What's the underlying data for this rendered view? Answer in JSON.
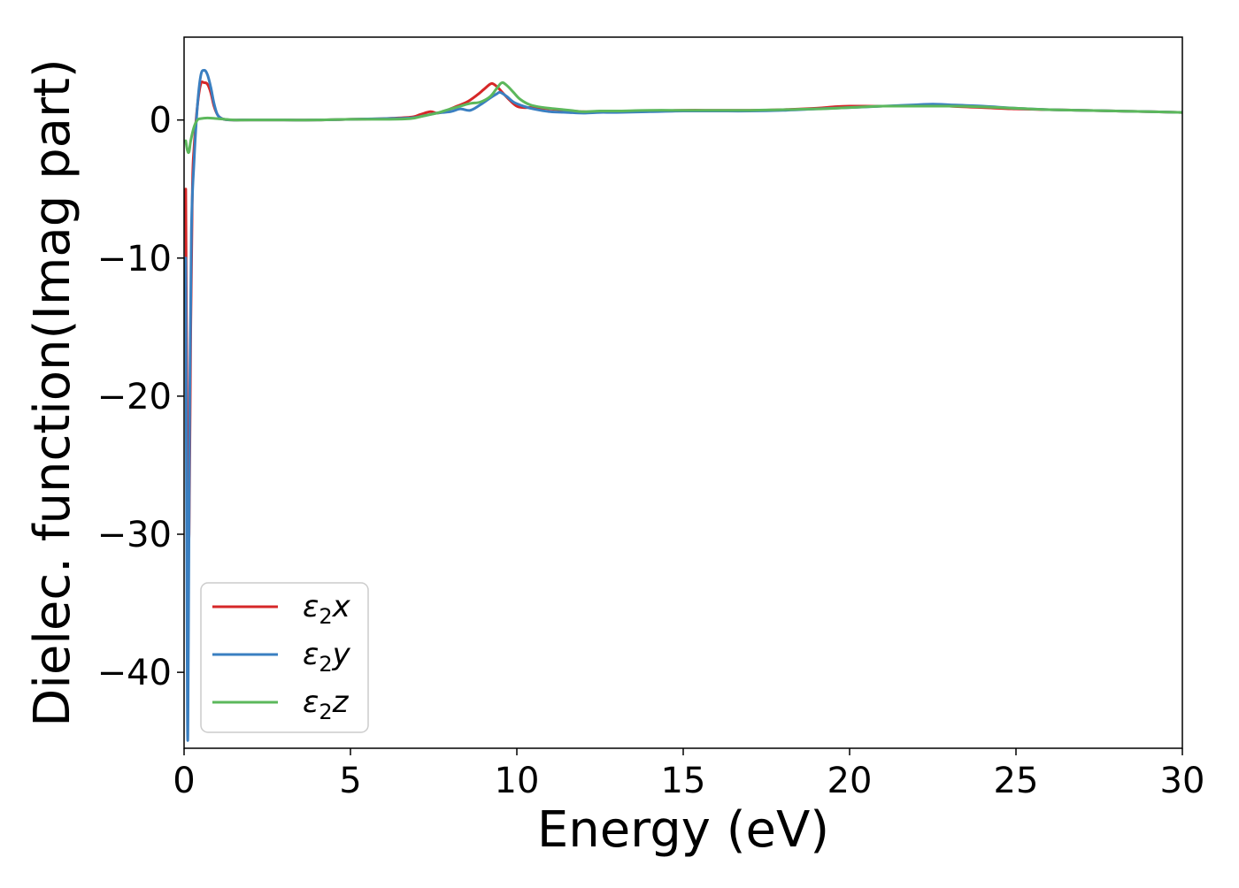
{
  "chart_data": {
    "type": "line",
    "title": "",
    "xlabel": "Energy (eV)",
    "ylabel": "Dielec. function(Imag part)",
    "xlim": [
      0,
      30
    ],
    "ylim": [
      -45.5,
      6
    ],
    "xticks": [
      0,
      5,
      10,
      15,
      20,
      25,
      30
    ],
    "xtick_labels": [
      "0",
      "5",
      "10",
      "15",
      "20",
      "25",
      "30"
    ],
    "yticks": [
      -40,
      -30,
      -20,
      -10,
      0
    ],
    "ytick_labels": [
      "−40",
      "−30",
      "−20",
      "−10",
      "0"
    ],
    "grid": false,
    "legend": {
      "placement": "lower-left",
      "entries": [
        {
          "symbol": "ε",
          "subscript": "2",
          "suffix": "x",
          "color": "#d62728"
        },
        {
          "symbol": "ε",
          "subscript": "2",
          "suffix": "y",
          "color": "#3a7fc1"
        },
        {
          "symbol": "ε",
          "subscript": "2",
          "suffix": "z",
          "color": "#5cb85c"
        }
      ]
    },
    "series": [
      {
        "name": "ε2x",
        "color": "#d62728",
        "x": [
          0.05,
          0.1,
          0.15,
          0.2,
          0.25,
          0.3,
          0.4,
          0.5,
          0.6,
          0.7,
          0.8,
          0.9,
          1.0,
          1.1,
          1.2,
          1.4,
          1.7,
          2.0,
          3.0,
          4.0,
          5.0,
          6.0,
          6.8,
          7.1,
          7.4,
          7.6,
          7.8,
          8.0,
          8.2,
          8.5,
          8.8,
          9.0,
          9.2,
          9.3,
          9.45,
          9.6,
          9.8,
          10.0,
          10.2,
          10.5,
          11.0,
          11.5,
          12.0,
          12.5,
          13.0,
          14.0,
          15.0,
          16.0,
          17.0,
          18.0,
          19.0,
          19.5,
          20.0,
          21.0,
          22.0,
          22.5,
          23.0,
          24.0,
          25.0,
          26.0,
          27.0,
          28.0,
          29.0,
          30.0
        ],
        "y": [
          -5,
          -25,
          -30,
          -15,
          -5,
          -2,
          1.0,
          2.6,
          2.7,
          2.6,
          2.0,
          1.0,
          0.4,
          0.15,
          0.05,
          0.0,
          0.0,
          0.0,
          0.0,
          0.0,
          0.05,
          0.1,
          0.2,
          0.4,
          0.6,
          0.5,
          0.6,
          0.8,
          1.0,
          1.3,
          1.8,
          2.2,
          2.6,
          2.6,
          2.3,
          1.9,
          1.4,
          1.0,
          0.9,
          0.9,
          0.8,
          0.7,
          0.6,
          0.6,
          0.6,
          0.65,
          0.7,
          0.7,
          0.7,
          0.75,
          0.85,
          0.95,
          1.0,
          1.0,
          1.05,
          1.1,
          1.0,
          0.9,
          0.8,
          0.75,
          0.7,
          0.65,
          0.6,
          0.55
        ]
      },
      {
        "name": "ε2y",
        "color": "#3a7fc1",
        "x": [
          0.05,
          0.1,
          0.13,
          0.17,
          0.22,
          0.3,
          0.4,
          0.5,
          0.6,
          0.7,
          0.8,
          0.9,
          1.0,
          1.1,
          1.2,
          1.4,
          1.7,
          2.0,
          3.0,
          4.0,
          5.0,
          6.0,
          6.8,
          7.2,
          7.6,
          8.0,
          8.3,
          8.6,
          8.9,
          9.2,
          9.4,
          9.5,
          9.7,
          9.9,
          10.2,
          10.5,
          11.0,
          11.5,
          12.0,
          12.5,
          13.0,
          14.0,
          15.0,
          16.0,
          17.0,
          18.0,
          19.0,
          20.0,
          21.0,
          22.0,
          22.5,
          23.0,
          24.0,
          25.0,
          26.0,
          27.0,
          28.0,
          29.0,
          30.0
        ],
        "y": [
          -10,
          -43,
          -38,
          -20,
          -8,
          -3,
          1.0,
          3.2,
          3.6,
          3.3,
          2.4,
          1.2,
          0.4,
          0.15,
          0.05,
          0.0,
          0.0,
          0.0,
          0.0,
          0.0,
          0.05,
          0.1,
          0.15,
          0.3,
          0.5,
          0.6,
          0.8,
          0.7,
          1.1,
          1.6,
          1.9,
          2.0,
          1.7,
          1.3,
          1.0,
          0.8,
          0.6,
          0.55,
          0.5,
          0.55,
          0.55,
          0.6,
          0.65,
          0.65,
          0.65,
          0.7,
          0.8,
          0.9,
          1.0,
          1.1,
          1.15,
          1.1,
          1.0,
          0.85,
          0.75,
          0.7,
          0.65,
          0.6,
          0.55
        ]
      },
      {
        "name": "ε2z",
        "color": "#5cb85c",
        "x": [
          0.05,
          0.1,
          0.15,
          0.2,
          0.3,
          0.4,
          0.5,
          0.7,
          1.0,
          1.5,
          2.0,
          3.0,
          4.0,
          5.0,
          6.0,
          6.8,
          7.2,
          7.6,
          8.0,
          8.3,
          8.6,
          8.9,
          9.2,
          9.4,
          9.55,
          9.7,
          9.9,
          10.1,
          10.4,
          10.8,
          11.2,
          11.6,
          12.0,
          12.5,
          13.0,
          14.0,
          15.0,
          16.0,
          17.0,
          18.0,
          19.0,
          20.0,
          21.0,
          22.0,
          23.0,
          24.0,
          25.0,
          26.0,
          27.0,
          28.0,
          29.0,
          30.0
        ],
        "y": [
          -1.5,
          -2.2,
          -2.3,
          -1.5,
          -0.5,
          0.0,
          0.1,
          0.15,
          0.1,
          0.0,
          0.0,
          0.0,
          0.0,
          0.05,
          0.05,
          0.1,
          0.3,
          0.5,
          0.8,
          1.0,
          1.2,
          1.3,
          1.7,
          2.3,
          2.7,
          2.5,
          2.0,
          1.5,
          1.1,
          0.9,
          0.8,
          0.7,
          0.6,
          0.65,
          0.65,
          0.7,
          0.7,
          0.7,
          0.7,
          0.75,
          0.8,
          0.9,
          1.0,
          1.0,
          1.0,
          0.95,
          0.85,
          0.75,
          0.7,
          0.65,
          0.6,
          0.55
        ]
      }
    ]
  }
}
